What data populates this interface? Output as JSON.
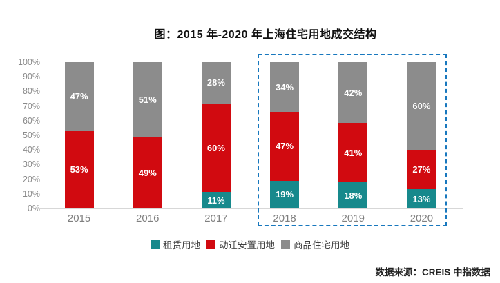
{
  "title": "图：2015 年-2020 年上海住宅用地成交结构",
  "footer": {
    "source": "数据来源：CREIS 中指数据"
  },
  "colors": {
    "rental": "#17898C",
    "relocation": "#D10A10",
    "commodity": "#8C8C8C",
    "highlight_border": "#1878BE",
    "axis_text": "#8A8A8A",
    "category_text": "#7F7F7F"
  },
  "chart_data": {
    "type": "bar",
    "stacked": true,
    "title": "图：2015 年-2020 年上海住宅用地成交结构",
    "categories": [
      "2015",
      "2016",
      "2017",
      "2018",
      "2019",
      "2020"
    ],
    "series": [
      {
        "name": "租赁用地",
        "color": "#17898C",
        "values": [
          0,
          0,
          11,
          19,
          18,
          13
        ]
      },
      {
        "name": "动迁安置用地",
        "color": "#D10A10",
        "values": [
          53,
          49,
          60,
          47,
          41,
          27
        ]
      },
      {
        "name": "商品住宅用地",
        "color": "#8C8C8C",
        "values": [
          47,
          51,
          28,
          34,
          42,
          60
        ]
      }
    ],
    "data_labels": true,
    "label_suffix": "%",
    "y_ticks": [
      "100%",
      "90%",
      "80%",
      "70%",
      "60%",
      "50%",
      "40%",
      "30%",
      "20%",
      "10%",
      "0%"
    ],
    "ylim": [
      0,
      100
    ],
    "grid": false,
    "legend_position": "bottom",
    "highlight_box_years": [
      "2018",
      "2019",
      "2020"
    ]
  }
}
